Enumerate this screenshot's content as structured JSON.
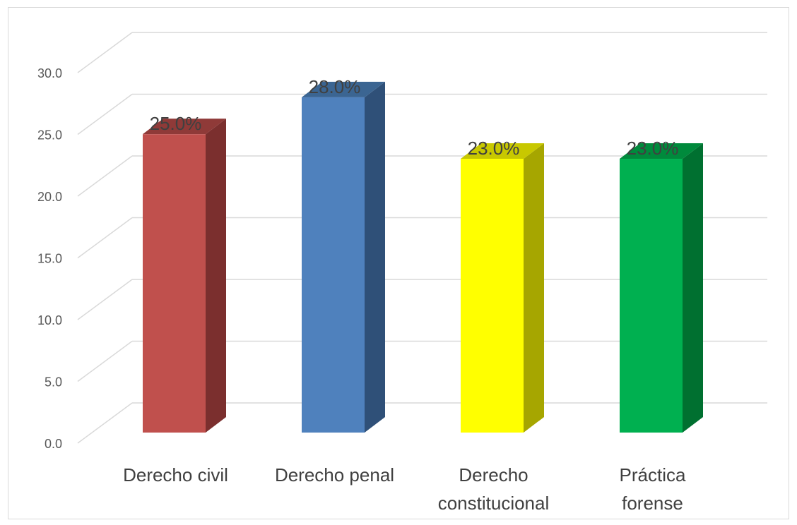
{
  "chart_data": {
    "type": "bar",
    "style": "3d-column",
    "categories": [
      [
        "Derecho civil"
      ],
      [
        "Derecho penal"
      ],
      [
        "Derecho",
        "constitucional"
      ],
      [
        "Práctica",
        "forense"
      ]
    ],
    "values": [
      25.0,
      28.0,
      23.0,
      23.0
    ],
    "data_labels": [
      "25.0%",
      "28.0%",
      "23.0%",
      "23.0%"
    ],
    "colors": [
      {
        "front": "#c0504d",
        "side": "#7b2f2e",
        "top": "#8f3a38"
      },
      {
        "front": "#4f81bd",
        "side": "#2f5078",
        "top": "#3b6592"
      },
      {
        "front": "#ffff00",
        "side": "#a6a600",
        "top": "#c8c800"
      },
      {
        "front": "#00b050",
        "side": "#007030",
        "top": "#008a3c"
      }
    ],
    "y_ticks": [
      "0.0",
      "5.0",
      "10.0",
      "15.0",
      "20.0",
      "25.0",
      "30.0"
    ],
    "ylim": [
      0,
      30
    ],
    "grid": true,
    "legend": "none",
    "title": "",
    "xlabel": "",
    "ylabel": ""
  }
}
